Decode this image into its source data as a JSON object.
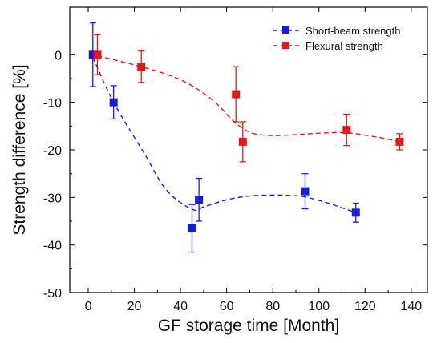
{
  "chart_data": {
    "type": "scatter",
    "xlabel": "GF storage time [Month]",
    "ylabel": "Strength difference [%]",
    "xlim": [
      -8,
      147
    ],
    "ylim": [
      -50,
      10
    ],
    "xticks": [
      0,
      20,
      40,
      60,
      80,
      100,
      120,
      140
    ],
    "yticks": [
      0,
      -10,
      -20,
      -30,
      -40,
      -50
    ],
    "grid": false,
    "legend_position": "top-right",
    "series": [
      {
        "name": "Short-beam strength",
        "color": "#1a1adc",
        "marker": "square",
        "line": "dashed-smooth",
        "x": [
          2,
          11,
          45,
          48,
          94,
          116
        ],
        "y": [
          0,
          -10,
          -36.5,
          -30.5,
          -28.7,
          -33.2
        ],
        "err": [
          6.7,
          3.5,
          5,
          4.5,
          3.7,
          2
        ],
        "trend_x": [
          2,
          11,
          24,
          34,
          45,
          50,
          60,
          70,
          80,
          88,
          94,
          104,
          116
        ],
        "trend_y": [
          -0.5,
          -10,
          -20.5,
          -28.5,
          -32.5,
          -32,
          -30.5,
          -29.7,
          -29.5,
          -29.6,
          -29.9,
          -31.2,
          -33.2
        ]
      },
      {
        "name": "Flexural strength",
        "color": "#e01a1a",
        "marker": "square",
        "line": "dashed-smooth",
        "x": [
          4,
          23,
          64,
          67,
          112,
          135
        ],
        "y": [
          0,
          -2.5,
          -8.3,
          -18.3,
          -15.8,
          -18.3
        ],
        "err": [
          4.2,
          3.3,
          5.8,
          4.2,
          3.3,
          1.7
        ],
        "trend_x": [
          4,
          23,
          35,
          45,
          55,
          62,
          67,
          72,
          80,
          90,
          100,
          112,
          125,
          135
        ],
        "trend_y": [
          -0.2,
          -2.5,
          -4.3,
          -6.5,
          -10,
          -13.5,
          -15.5,
          -16.6,
          -17,
          -16.8,
          -16.5,
          -16.4,
          -17.3,
          -18.3
        ]
      }
    ]
  }
}
